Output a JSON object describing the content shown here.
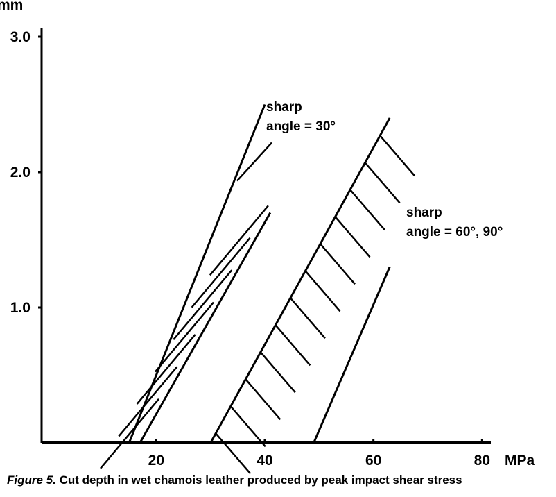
{
  "chart_data": {
    "type": "area",
    "title": "",
    "xlabel": "MPa",
    "ylabel": "mm",
    "xlim": [
      0,
      80
    ],
    "ylim": [
      0,
      3.0
    ],
    "x_ticks": [
      20,
      40,
      60,
      80
    ],
    "x_tick_labels": [
      "20",
      "40",
      "60",
      "80"
    ],
    "y_ticks": [
      1.0,
      2.0,
      3.0
    ],
    "y_tick_labels": [
      "1.0",
      "2.0",
      "3.0"
    ],
    "grid": false,
    "series": [
      {
        "name": "sharp angle = 30°",
        "hatched_band": true,
        "left_boundary": [
          [
            15,
            0
          ],
          [
            40,
            2.5
          ]
        ],
        "right_boundary": [
          [
            17,
            0
          ],
          [
            41,
            1.7
          ]
        ]
      },
      {
        "name": "sharp angle = 60°, 90°",
        "hatched_band": true,
        "left_boundary": [
          [
            30,
            0
          ],
          [
            63,
            2.4
          ]
        ],
        "right_boundary": [
          [
            49,
            0
          ],
          [
            63,
            1.3
          ]
        ]
      }
    ],
    "annotations": [
      {
        "lines": [
          "sharp",
          "angle = 30°"
        ]
      },
      {
        "lines": [
          "sharp",
          "angle = 60°, 90°"
        ]
      }
    ]
  },
  "caption": {
    "figure_label": "Figure 5.",
    "text": "Cut depth in wet chamois leather produced by peak impact shear stress"
  }
}
